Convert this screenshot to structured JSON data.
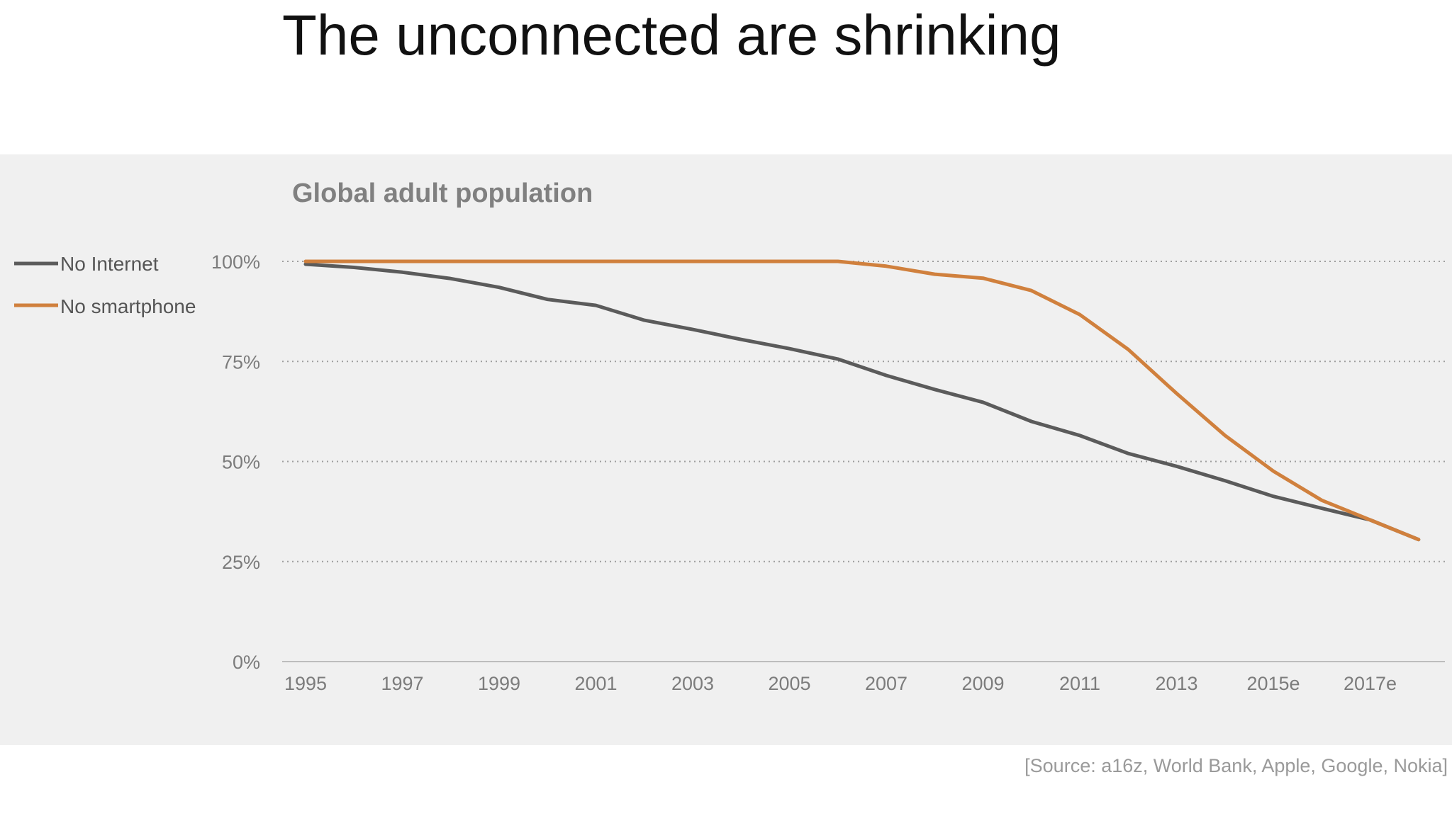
{
  "slide": {
    "title": "The unconnected are shrinking",
    "source": "[Source: a16z, World Bank, Apple, Google, Nokia]"
  },
  "chart_data": {
    "type": "line",
    "title": "Global adult population",
    "xlabel": "",
    "ylabel": "",
    "ylim": [
      0,
      100
    ],
    "yticks": [
      0,
      25,
      50,
      75,
      100
    ],
    "ytick_labels": [
      "0%",
      "25%",
      "50%",
      "75%",
      "100%"
    ],
    "grid": true,
    "legend_position": "left",
    "x_tick_labels": [
      "1995",
      "1997",
      "1999",
      "2001",
      "2003",
      "2005",
      "2007",
      "2009",
      "2011",
      "2013",
      "2015e",
      "2017e"
    ],
    "x": [
      1995,
      1996,
      1997,
      1998,
      1999,
      2000,
      2001,
      2002,
      2003,
      2004,
      2005,
      2006,
      2007,
      2008,
      2009,
      2010,
      2011,
      2012,
      2013,
      2014,
      2015,
      2016,
      2017,
      2018
    ],
    "series": [
      {
        "name": "No Internet",
        "color": "#5b5b5b",
        "values": [
          99.3,
          98.5,
          97.3,
          95.7,
          93.5,
          90.5,
          89,
          85.3,
          83,
          80.5,
          78.2,
          75.6,
          71.5,
          68,
          64.8,
          60,
          56.5,
          52,
          48.8,
          45.2,
          41.3,
          38.3,
          35.4,
          30.5
        ]
      },
      {
        "name": "No smartphone",
        "color": "#d0803d",
        "values": [
          100,
          100,
          100,
          100,
          100,
          100,
          100,
          100,
          100,
          100,
          100,
          100,
          98.8,
          96.8,
          95.8,
          92.7,
          86.7,
          78,
          67,
          56.5,
          47.6,
          40.3,
          35.4,
          30.5
        ]
      }
    ]
  }
}
